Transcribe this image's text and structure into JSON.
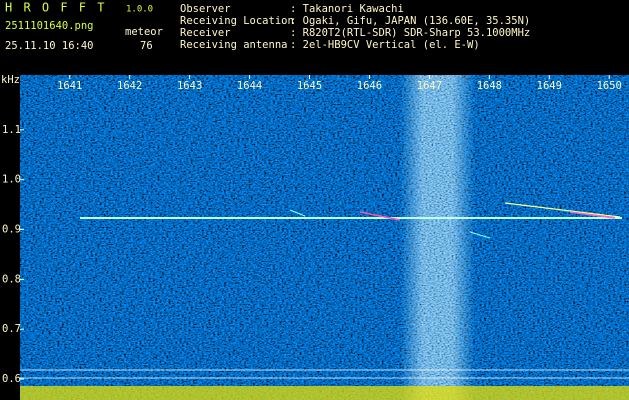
{
  "header": {
    "app": "H R O F F T",
    "version": "1.0.0",
    "file": "2511101640.png",
    "meteor_label": "meteor",
    "datetime": "25.11.10 16:40",
    "meteor_count": 76,
    "info": [
      {
        "label": "Observer",
        "value": ": Takanori Kawachi"
      },
      {
        "label": "Receiving Location",
        "value": ": Ogaki, Gifu, JAPAN (136.60E, 35.35N)"
      },
      {
        "label": "Receiver",
        "value": ": R820T2(RTL-SDR) SDR-Sharp 53.1000MHz"
      },
      {
        "label": "Receiving antenna",
        "value": ": 2el-HB9CV Vertical (el. E-W)"
      }
    ]
  },
  "chart_data": {
    "type": "spectrogram",
    "y_label": "kHz",
    "xlim": [
      1640.17,
      1650.33
    ],
    "xticks": [
      1641,
      1642,
      1643,
      1644,
      1645,
      1646,
      1647,
      1648,
      1649,
      1650
    ],
    "ylim": [
      0.558,
      1.21
    ],
    "yticks": [
      {
        "value": 1.1,
        "label": "1.1"
      },
      {
        "value": 1,
        "label": "1.0"
      },
      0.9,
      0.8,
      0.7,
      0.6
    ]
  }
}
